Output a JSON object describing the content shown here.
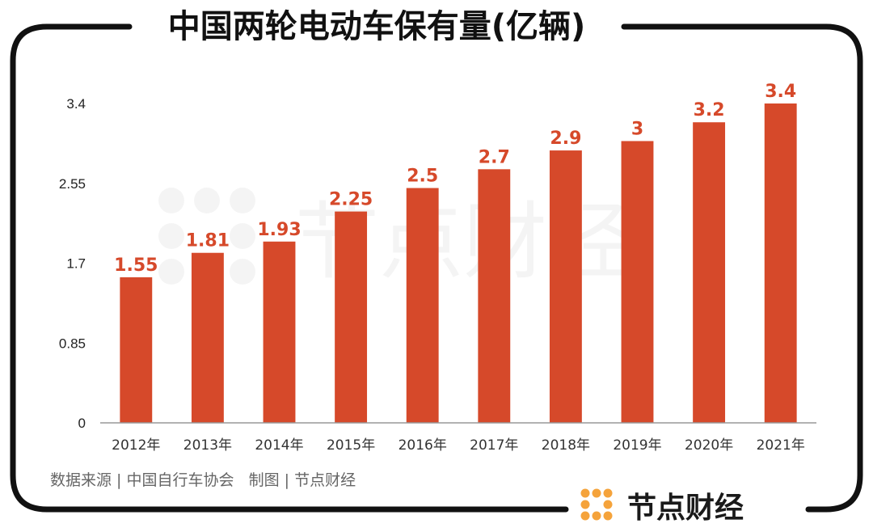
{
  "chart_data": {
    "type": "bar",
    "title": "中国两轮电动车保有量(亿辆)",
    "categories": [
      "2012年",
      "2013年",
      "2014年",
      "2015年",
      "2016年",
      "2017年",
      "2018年",
      "2019年",
      "2020年",
      "2021年"
    ],
    "values": [
      1.55,
      1.81,
      1.93,
      2.25,
      2.5,
      2.7,
      2.9,
      3,
      3.2,
      3.4
    ],
    "data_labels": [
      "1.55",
      "1.81",
      "1.93",
      "2.25",
      "2.5",
      "2.7",
      "2.9",
      "3",
      "3.2",
      "3.4"
    ],
    "yticks": [
      0,
      0.85,
      1.7,
      2.55,
      3.4
    ],
    "ytick_labels": [
      "0",
      "0.85",
      "1.7",
      "2.55",
      "3.4"
    ],
    "ylim": [
      0,
      3.4
    ],
    "grid": false,
    "legend": "none",
    "bar_color": "#d6492a",
    "label_color": "#d6492a"
  },
  "footer": {
    "source": "数据来源 | 中国自行车协会   制图 | 节点财经"
  },
  "brand": {
    "name": "节点财经",
    "logo_icon": "node-dots-logo-icon",
    "logo_color": "#f5a33b"
  },
  "watermark": {
    "text": "节点财经"
  }
}
